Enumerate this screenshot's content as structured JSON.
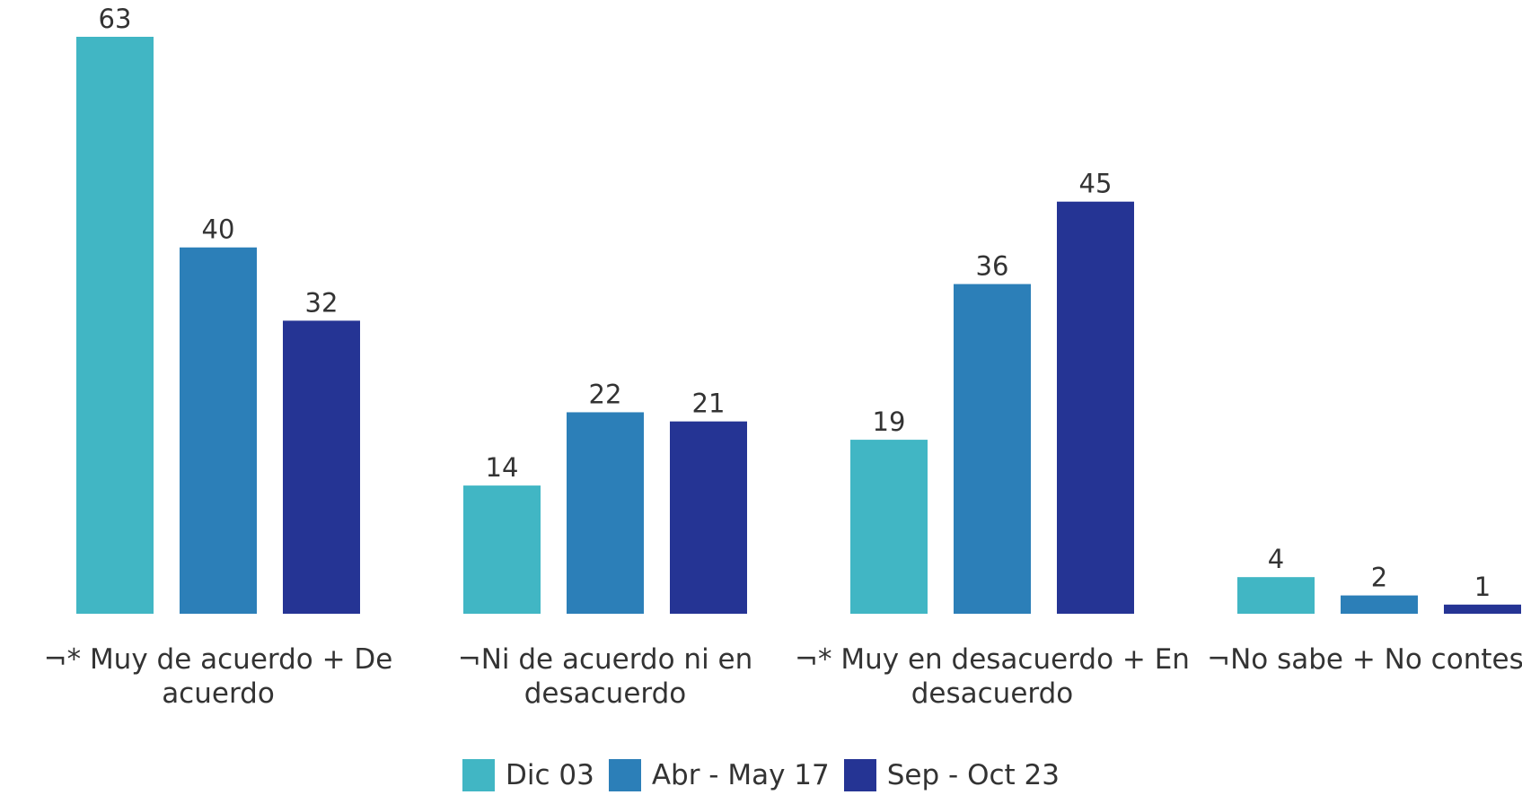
{
  "chart_data": {
    "type": "bar",
    "categories": [
      "¬* Muy de acuerdo + De acuerdo",
      "¬Ni de acuerdo ni en desacuerdo",
      "¬* Muy en desacuerdo + En desacuerdo",
      "¬No sabe + No contesta"
    ],
    "series": [
      {
        "name": "Dic 03",
        "color": "#41b6c4",
        "values": [
          63,
          14,
          19,
          4
        ]
      },
      {
        "name": "Abr - May 17",
        "color": "#2c7fb8",
        "values": [
          40,
          22,
          36,
          2
        ]
      },
      {
        "name": "Sep - Oct 23",
        "color": "#253494",
        "values": [
          32,
          21,
          45,
          1
        ]
      }
    ],
    "legend": "bottom"
  }
}
